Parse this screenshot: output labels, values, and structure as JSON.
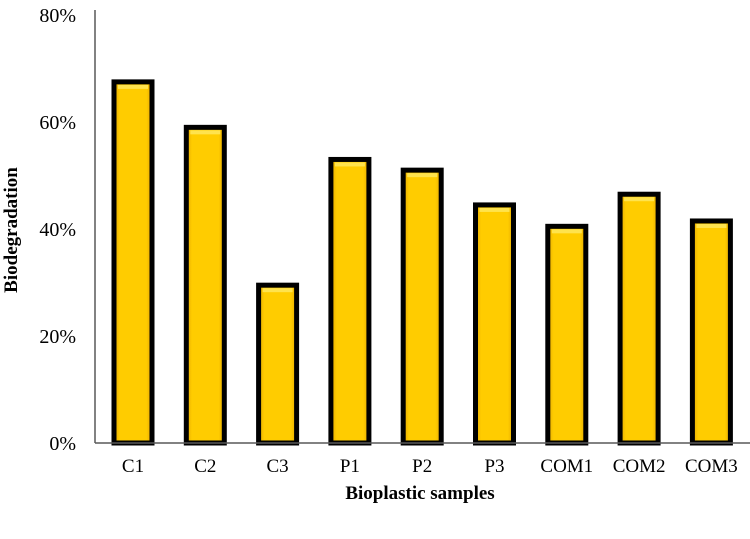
{
  "chart_data": {
    "type": "bar",
    "title": "",
    "xlabel": "Bioplastic samples",
    "ylabel": "Biodegradation",
    "categories": [
      "C1",
      "C2",
      "C3",
      "P1",
      "P2",
      "P3",
      "COM1",
      "COM2",
      "COM3"
    ],
    "values": [
      67.5,
      59,
      29.5,
      53,
      51,
      44.5,
      40.5,
      46.5,
      41.5
    ],
    "ylim": [
      0,
      80
    ],
    "yticks": [
      "0%",
      "20%",
      "40%",
      "60%",
      "80%"
    ],
    "grid": false,
    "legend": "none",
    "colors": {
      "bar_fill": "#FFCC00",
      "bar_border": "#000000",
      "axis": "#595959"
    }
  }
}
